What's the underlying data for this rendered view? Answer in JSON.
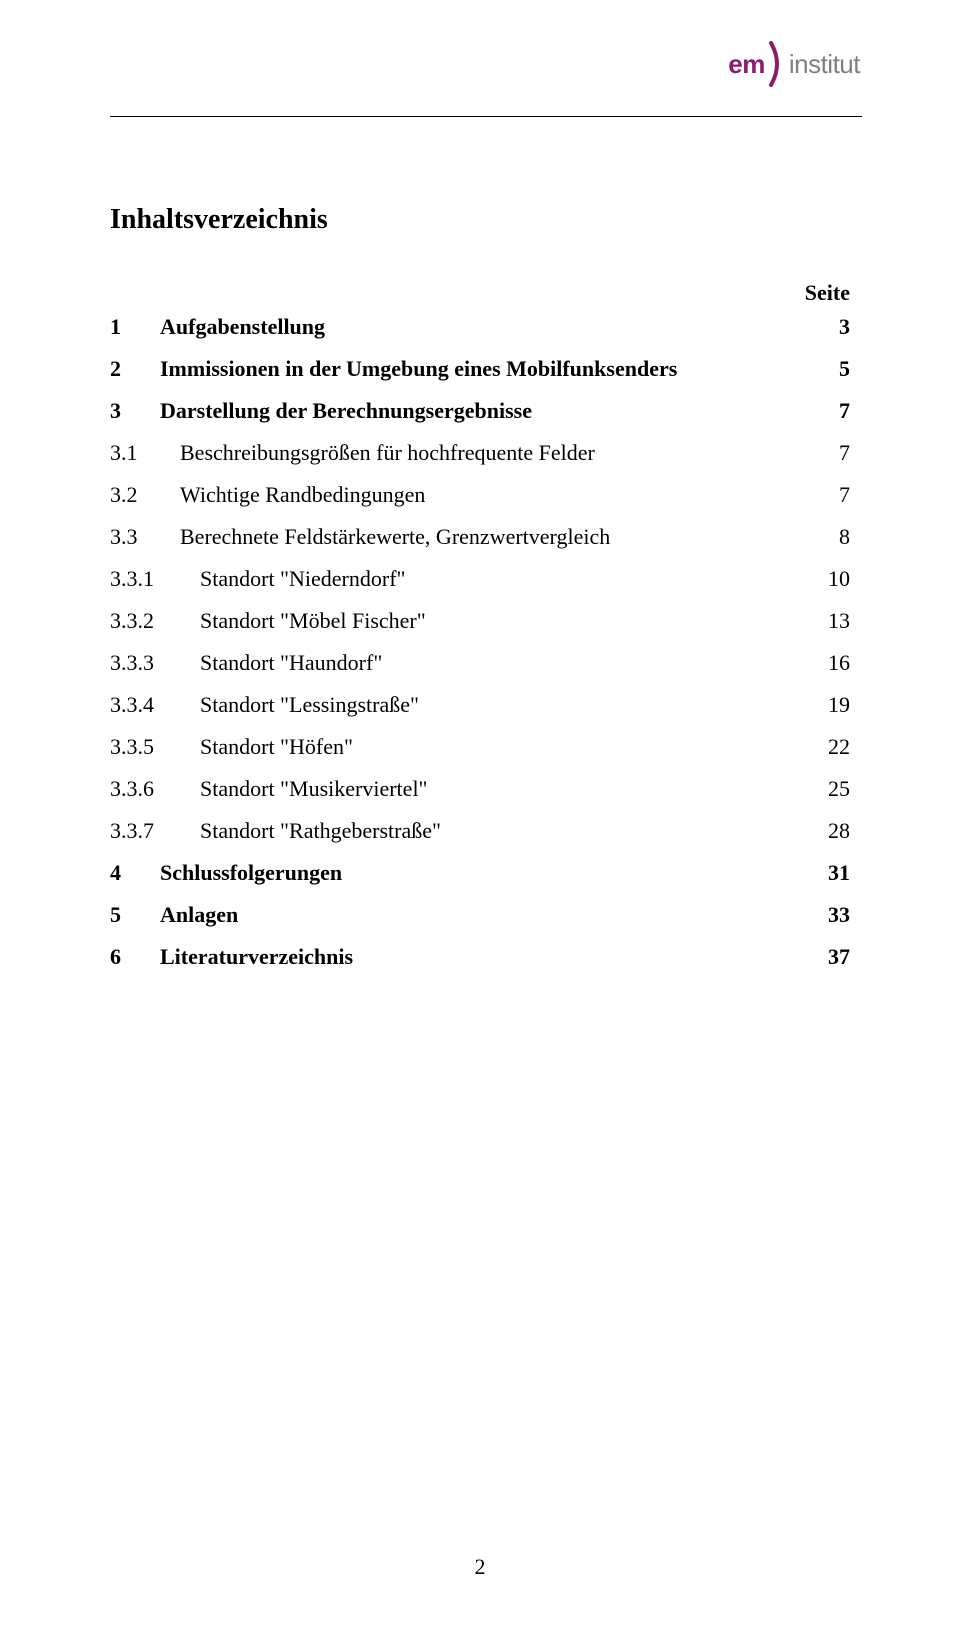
{
  "logo": {
    "em": "em",
    "institut": "institut",
    "em_color": "#8b1b6e",
    "institut_color": "#808080",
    "arc_color": "#8b1b6e"
  },
  "title": "Inhaltsverzeichnis",
  "seite_label": "Seite",
  "toc": [
    {
      "level": 1,
      "num": "1",
      "title": "Aufgabenstellung",
      "page": "3"
    },
    {
      "level": 1,
      "num": "2",
      "title": "Immissionen in der Umgebung eines Mobilfunksenders",
      "page": "5"
    },
    {
      "level": 1,
      "num": "3",
      "title": "Darstellung der Berechnungsergebnisse",
      "page": "7"
    },
    {
      "level": 2,
      "num": "3.1",
      "title": "Beschreibungsgrößen für hochfrequente Felder",
      "page": "7"
    },
    {
      "level": 2,
      "num": "3.2",
      "title": "Wichtige Randbedingungen",
      "page": "7"
    },
    {
      "level": 2,
      "num": "3.3",
      "title": "Berechnete Feldstärkewerte, Grenzwertvergleich",
      "page": "8"
    },
    {
      "level": 3,
      "num": "3.3.1",
      "title": "Standort \"Niederndorf\"",
      "page": "10"
    },
    {
      "level": 3,
      "num": "3.3.2",
      "title": "Standort \"Möbel Fischer\"",
      "page": "13"
    },
    {
      "level": 3,
      "num": "3.3.3",
      "title": "Standort \"Haundorf\"",
      "page": "16"
    },
    {
      "level": 3,
      "num": "3.3.4",
      "title": "Standort \"Lessingstraße\"",
      "page": "19"
    },
    {
      "level": 3,
      "num": "3.3.5",
      "title": "Standort \"Höfen\"",
      "page": "22"
    },
    {
      "level": 3,
      "num": "3.3.6",
      "title": "Standort \"Musikerviertel\"",
      "page": "25"
    },
    {
      "level": 3,
      "num": "3.3.7",
      "title": "Standort \"Rathgeberstraße\"",
      "page": "28"
    },
    {
      "level": 1,
      "num": "4",
      "title": "Schlussfolgerungen",
      "page": "31"
    },
    {
      "level": 1,
      "num": "5",
      "title": "Anlagen",
      "page": "33"
    },
    {
      "level": 1,
      "num": "6",
      "title": "Literaturverzeichnis",
      "page": "37"
    }
  ],
  "page_number": "2"
}
